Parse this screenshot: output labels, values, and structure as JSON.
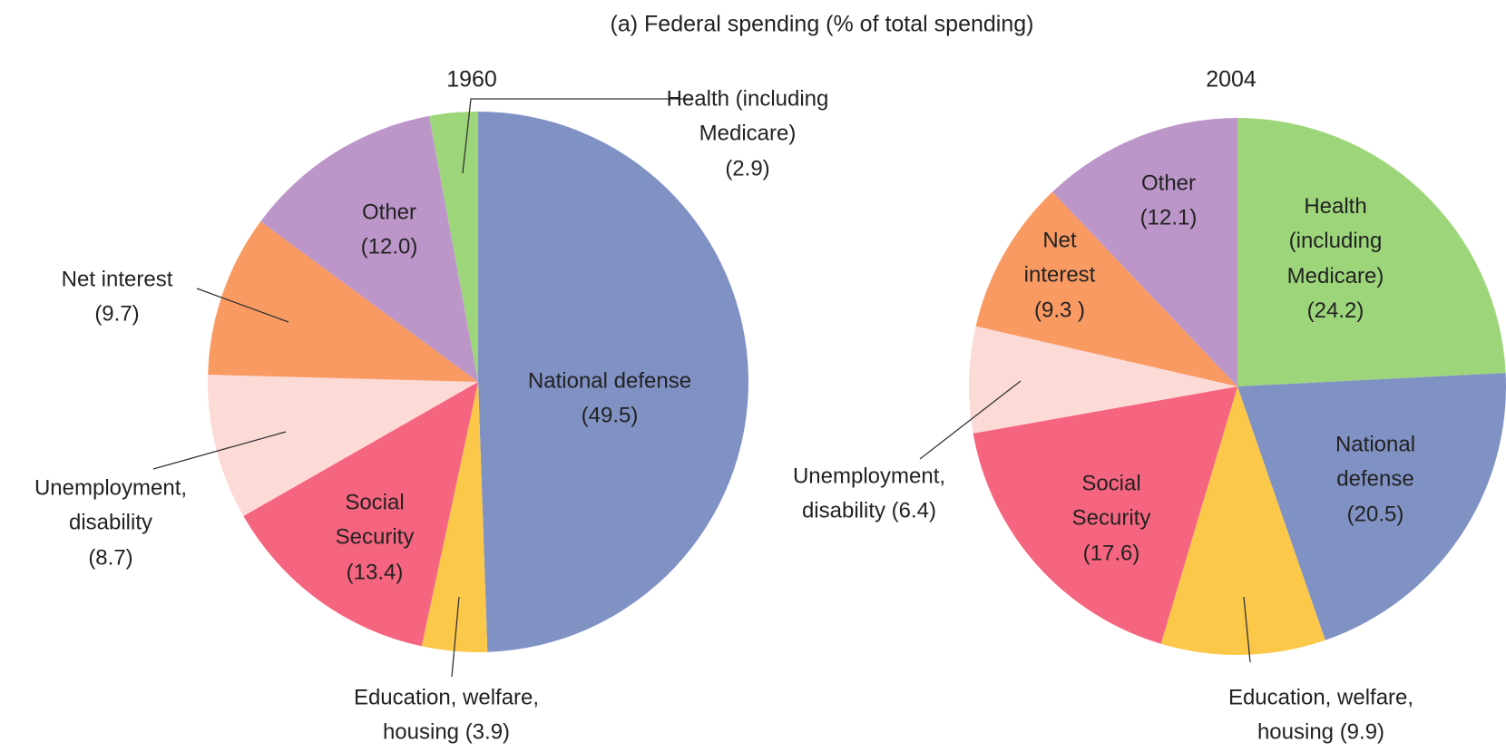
{
  "title": "(a) Federal spending (% of total spending)",
  "chart_data": [
    {
      "type": "pie",
      "title": "1960",
      "categories": [
        "National defense",
        "Education, welfare, housing",
        "Social Security",
        "Unemployment, disability",
        "Net interest",
        "Other",
        "Health (including Medicare)"
      ],
      "values": [
        49.5,
        3.9,
        13.4,
        8.7,
        9.7,
        12.0,
        2.9
      ],
      "value_labels": [
        "(49.5)",
        "(3.9)",
        "(13.4)",
        "(8.7)",
        "(9.7)",
        "(12.0)",
        "(2.9)"
      ],
      "colors": [
        "#8091c4",
        "#fbc84a",
        "#f6657f",
        "#fcdad6",
        "#f99a63",
        "#bc96c9",
        "#9dd67a"
      ]
    },
    {
      "type": "pie",
      "title": "2004",
      "categories": [
        "Health (including Medicare)",
        "National defense",
        "Education, welfare, housing",
        "Social Security",
        "Unemployment, disability",
        "Net interest",
        "Other"
      ],
      "values": [
        24.2,
        20.5,
        9.9,
        17.6,
        6.4,
        9.3,
        12.1
      ],
      "value_labels": [
        "(24.2)",
        "(20.5)",
        "(9.9)",
        "(17.6)",
        "(6.4)",
        "(9.3 )",
        "(12.1)"
      ],
      "colors": [
        "#9dd67a",
        "#8091c4",
        "#fbc84a",
        "#f6657f",
        "#fcdad6",
        "#f99a63",
        "#bc96c9"
      ]
    }
  ]
}
